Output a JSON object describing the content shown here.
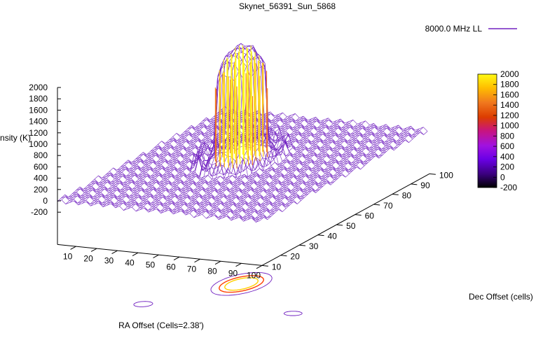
{
  "chart_data": {
    "type": "surface3d",
    "title": "Skynet_56391_Sun_5868",
    "legend": {
      "label": "8000.0 MHz LL",
      "position": "top-right"
    },
    "xlabel": "RA Offset (Cells=2.38')",
    "ylabel": "Dec Offset (cells)",
    "zlabel": "Intensity (K)",
    "xlim": [
      1,
      100
    ],
    "ylim": [
      10,
      100
    ],
    "zlim": [
      -200,
      2000
    ],
    "x_ticks": [
      "10",
      "20",
      "30",
      "40",
      "50",
      "60",
      "70",
      "80",
      "90",
      "100"
    ],
    "y_ticks": [
      "10",
      "20",
      "30",
      "40",
      "50",
      "60",
      "70",
      "80",
      "90",
      "100"
    ],
    "z_ticks": [
      "2000",
      "1800",
      "1600",
      "1400",
      "1200",
      "1000",
      "800",
      "600",
      "400",
      "200",
      "0",
      "-200"
    ],
    "colorbar": {
      "ticks": [
        "2000",
        "1800",
        "1600",
        "1400",
        "1200",
        "1000",
        "800",
        "600",
        "400",
        "200",
        "0",
        "-200"
      ],
      "range": [
        -200,
        2000
      ],
      "palette": [
        "#000000",
        "#3b007f",
        "#6a00e6",
        "#a012e0",
        "#c8147f",
        "#dc3c00",
        "#f0781e",
        "#ffbe00",
        "#fffa14"
      ]
    },
    "surface": {
      "baseline_K": 0,
      "peak_K": 2000,
      "peak_center": {
        "x": 45,
        "y": 60
      },
      "feature": "central disk (Sun) rising to ~2000 K with flat background near 0 K"
    },
    "series_color": "#7020c0"
  }
}
